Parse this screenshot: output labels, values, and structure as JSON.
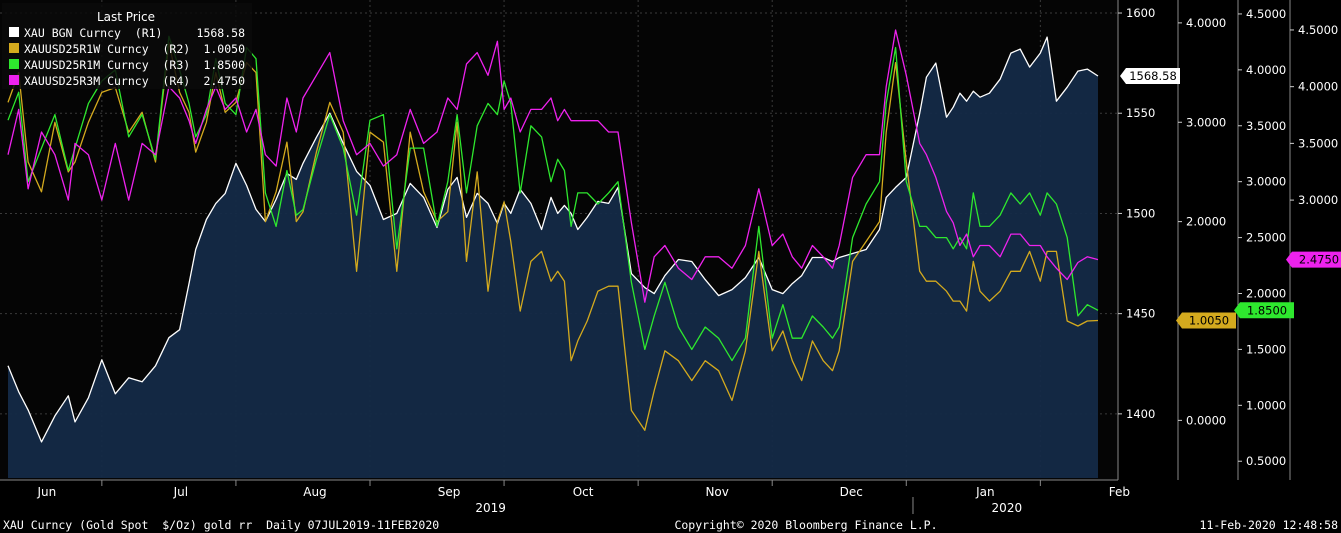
{
  "footer": {
    "left": "XAU Curncy (Gold Spot  $/Oz) gold rr  Daily 07JUL2019-11FEB2020",
    "center": "Copyright© 2020 Bloomberg Finance L.P.",
    "right": "11-Feb-2020 12:48:58"
  },
  "colors": {
    "background": "#000000",
    "plot_area": "#050505",
    "area_fill": "#142a47",
    "grid": "#3a3a3a",
    "axis_text": "#ffffff",
    "r1": "#ffffff",
    "r2": "#d4aa1e",
    "r3": "#2ee82e",
    "r4": "#ee22ee"
  },
  "chart_data": {
    "type": "line",
    "legend": {
      "title": "Last Price",
      "placement": "top-left",
      "entries": [
        {
          "key": "r1",
          "label": "XAU BGN Curncy  (R1)",
          "value": "1568.58"
        },
        {
          "key": "r2",
          "label": "XAUUSD25R1W Curncy  (R2)",
          "value": "1.0050"
        },
        {
          "key": "r3",
          "label": "XAUUSD25R1M Curncy  (R3)",
          "value": "1.8500"
        },
        {
          "key": "r4",
          "label": "XAUUSD25R3M Curncy  (R4)",
          "value": "2.4750"
        }
      ]
    },
    "x_labels": [
      "Jun",
      "Jul",
      "Aug",
      "Sep",
      "Oct",
      "Nov",
      "Dec",
      "Jan",
      "Feb"
    ],
    "x_label_pos": [
      0.0,
      1.0,
      2.0,
      3.0,
      4.0,
      5.0,
      6.0,
      7.0,
      8.0
    ],
    "x_year_labels": [
      {
        "text": "2019",
        "pos": 3.4
      },
      {
        "text": "2020",
        "pos": 7.25
      }
    ],
    "x_year_divider": 6.55,
    "xlim": [
      -0.2,
      7.93
    ],
    "grid": true,
    "axes": {
      "r1": {
        "ticks": [
          "1600",
          "1550",
          "1500",
          "1450",
          "1400"
        ],
        "tick_values": [
          1600,
          1550,
          1500,
          1450,
          1400
        ],
        "ylim": [
          1368,
          1604
        ]
      },
      "r2": {
        "ticks": [
          "4.0000",
          "3.0000",
          "2.0000",
          "1.0000",
          "0.0000"
        ],
        "tick_values": [
          4,
          3,
          2,
          1,
          0
        ],
        "ylim": [
          -0.58,
          4.18
        ]
      },
      "r3": {
        "ticks": [
          "4.5000",
          "4.0000",
          "3.5000",
          "3.0000",
          "2.5000",
          "2.0000",
          "1.5000",
          "1.0000",
          "0.5000"
        ],
        "tick_values": [
          4.5,
          4.0,
          3.5,
          3.0,
          2.5,
          2.0,
          1.5,
          1.0,
          0.5
        ],
        "ylim": [
          0.35,
          4.58
        ]
      },
      "r4": {
        "ticks": [
          "4.5000",
          "4.0000",
          "3.5000",
          "3.0000"
        ],
        "tick_values": [
          4.5,
          4.0,
          3.5,
          3.0
        ],
        "ylim": [
          0.55,
          4.72
        ]
      }
    },
    "last_value_labels": [
      {
        "key": "r1",
        "text": "1568.58",
        "value": 1568.58
      },
      {
        "key": "r2",
        "text": "1.0050",
        "value": 1.005
      },
      {
        "key": "r3",
        "text": "1.8500",
        "value": 1.85
      },
      {
        "key": "r4",
        "text": "2.4750",
        "value": 2.475
      }
    ],
    "series": [
      {
        "key": "r1",
        "axis": "r1",
        "name": "XAU BGN Curncy",
        "area": true,
        "x": [
          -0.2,
          -0.12,
          -0.05,
          0.05,
          0.15,
          0.25,
          0.3,
          0.4,
          0.5,
          0.6,
          0.7,
          0.8,
          0.9,
          1.0,
          1.08,
          1.15,
          1.2,
          1.28,
          1.35,
          1.42,
          1.5,
          1.58,
          1.65,
          1.72,
          1.8,
          1.88,
          1.95,
          2.0,
          2.1,
          2.2,
          2.3,
          2.4,
          2.5,
          2.6,
          2.7,
          2.8,
          2.9,
          3.0,
          3.08,
          3.15,
          3.22,
          3.3,
          3.38,
          3.45,
          3.5,
          3.55,
          3.62,
          3.7,
          3.78,
          3.85,
          3.9,
          3.95,
          4.0,
          4.05,
          4.12,
          4.2,
          4.28,
          4.35,
          4.45,
          4.55,
          4.62,
          4.7,
          4.8,
          4.9,
          5.0,
          5.1,
          5.2,
          5.3,
          5.4,
          5.5,
          5.58,
          5.65,
          5.72,
          5.8,
          5.88,
          5.95,
          6.0,
          6.1,
          6.2,
          6.3,
          6.35,
          6.42,
          6.5,
          6.6,
          6.65,
          6.72,
          6.8,
          6.85,
          6.9,
          6.95,
          7.0,
          7.05,
          7.12,
          7.2,
          7.28,
          7.35,
          7.42,
          7.5,
          7.55,
          7.62,
          7.7,
          7.78,
          7.85,
          7.93
        ],
        "values": [
          1424,
          1411,
          1402,
          1386,
          1399,
          1409,
          1396,
          1408,
          1427,
          1410,
          1418,
          1416,
          1424,
          1438,
          1442,
          1465,
          1482,
          1497,
          1505,
          1510,
          1525,
          1514,
          1502,
          1496,
          1507,
          1520,
          1517,
          1525,
          1538,
          1550,
          1535,
          1521,
          1514,
          1497,
          1500,
          1515,
          1508,
          1493,
          1512,
          1518,
          1498,
          1510,
          1505,
          1495,
          1505,
          1500,
          1512,
          1505,
          1492,
          1508,
          1500,
          1504,
          1500,
          1492,
          1498,
          1506,
          1505,
          1513,
          1470,
          1463,
          1460,
          1469,
          1477,
          1476,
          1467,
          1459,
          1462,
          1468,
          1478,
          1462,
          1460,
          1465,
          1469,
          1478,
          1478,
          1476,
          1478,
          1480,
          1482,
          1492,
          1508,
          1513,
          1518,
          1550,
          1568,
          1575,
          1548,
          1553,
          1560,
          1556,
          1561,
          1558,
          1560,
          1567,
          1580,
          1582,
          1573,
          1580,
          1588,
          1556,
          1563,
          1571,
          1572,
          1568.58
        ]
      },
      {
        "key": "r2",
        "axis": "r2",
        "name": "XAUUSD25R1W Curncy",
        "x": [
          -0.2,
          -0.12,
          -0.05,
          0.05,
          0.15,
          0.25,
          0.3,
          0.4,
          0.5,
          0.6,
          0.7,
          0.8,
          0.9,
          1.0,
          1.08,
          1.15,
          1.2,
          1.28,
          1.35,
          1.42,
          1.5,
          1.58,
          1.65,
          1.72,
          1.8,
          1.88,
          1.95,
          2.0,
          2.1,
          2.2,
          2.3,
          2.4,
          2.5,
          2.6,
          2.7,
          2.8,
          2.9,
          3.0,
          3.08,
          3.15,
          3.22,
          3.3,
          3.38,
          3.45,
          3.5,
          3.55,
          3.62,
          3.7,
          3.78,
          3.85,
          3.9,
          3.95,
          4.0,
          4.05,
          4.12,
          4.2,
          4.28,
          4.35,
          4.45,
          4.55,
          4.62,
          4.7,
          4.8,
          4.9,
          5.0,
          5.1,
          5.2,
          5.3,
          5.4,
          5.5,
          5.58,
          5.65,
          5.72,
          5.8,
          5.88,
          5.95,
          6.0,
          6.1,
          6.2,
          6.3,
          6.35,
          6.42,
          6.5,
          6.6,
          6.65,
          6.72,
          6.8,
          6.85,
          6.9,
          6.95,
          7.0,
          7.05,
          7.12,
          7.2,
          7.28,
          7.35,
          7.42,
          7.5,
          7.55,
          7.62,
          7.7,
          7.78,
          7.85,
          7.93
        ],
        "values": [
          3.2,
          3.5,
          2.6,
          2.3,
          3.0,
          2.5,
          2.6,
          3.0,
          3.3,
          3.35,
          2.9,
          3.1,
          2.6,
          3.8,
          3.3,
          3.1,
          2.7,
          3.0,
          3.5,
          3.1,
          3.2,
          3.6,
          3.5,
          2.0,
          2.3,
          2.8,
          2.0,
          2.1,
          2.7,
          3.2,
          2.9,
          1.5,
          2.9,
          2.8,
          1.5,
          2.9,
          2.3,
          2.0,
          2.1,
          3.0,
          1.6,
          2.5,
          1.3,
          2.0,
          2.2,
          1.8,
          1.1,
          1.6,
          1.7,
          1.4,
          1.5,
          1.4,
          0.6,
          0.8,
          1.0,
          1.3,
          1.35,
          1.35,
          0.1,
          -0.1,
          0.3,
          0.7,
          0.6,
          0.4,
          0.6,
          0.5,
          0.2,
          0.7,
          1.7,
          0.7,
          0.9,
          0.6,
          0.4,
          0.8,
          0.6,
          0.5,
          0.7,
          1.6,
          1.8,
          2.0,
          2.9,
          3.6,
          2.6,
          1.5,
          1.4,
          1.4,
          1.3,
          1.2,
          1.2,
          1.1,
          1.6,
          1.3,
          1.2,
          1.3,
          1.5,
          1.5,
          1.7,
          1.4,
          1.7,
          1.7,
          1.0,
          0.95,
          1.0,
          1.005
        ]
      },
      {
        "key": "r3",
        "axis": "r3",
        "name": "XAUUSD25R1M Curncy",
        "x": [
          -0.2,
          -0.12,
          -0.05,
          0.05,
          0.15,
          0.25,
          0.3,
          0.4,
          0.5,
          0.6,
          0.7,
          0.8,
          0.9,
          1.0,
          1.08,
          1.15,
          1.2,
          1.28,
          1.35,
          1.42,
          1.5,
          1.58,
          1.65,
          1.72,
          1.8,
          1.88,
          1.95,
          2.0,
          2.1,
          2.2,
          2.3,
          2.4,
          2.5,
          2.6,
          2.7,
          2.8,
          2.9,
          3.0,
          3.08,
          3.15,
          3.22,
          3.3,
          3.38,
          3.45,
          3.5,
          3.55,
          3.62,
          3.7,
          3.78,
          3.85,
          3.9,
          3.95,
          4.0,
          4.05,
          4.12,
          4.2,
          4.28,
          4.35,
          4.45,
          4.55,
          4.62,
          4.7,
          4.8,
          4.9,
          5.0,
          5.1,
          5.2,
          5.3,
          5.4,
          5.5,
          5.58,
          5.65,
          5.72,
          5.8,
          5.88,
          5.95,
          6.0,
          6.1,
          6.2,
          6.3,
          6.35,
          6.42,
          6.5,
          6.6,
          6.65,
          6.72,
          6.8,
          6.85,
          6.9,
          6.95,
          7.0,
          7.05,
          7.12,
          7.2,
          7.28,
          7.35,
          7.42,
          7.5,
          7.55,
          7.62,
          7.7,
          7.78,
          7.85,
          7.93
        ],
        "values": [
          3.55,
          3.8,
          3.0,
          3.3,
          3.6,
          3.1,
          3.3,
          3.7,
          3.9,
          4.0,
          3.4,
          3.6,
          3.2,
          4.3,
          4.0,
          3.7,
          3.4,
          3.6,
          4.1,
          3.7,
          3.6,
          4.2,
          4.1,
          2.9,
          2.6,
          3.1,
          2.7,
          2.75,
          3.2,
          3.6,
          3.3,
          2.7,
          3.55,
          3.6,
          2.4,
          3.3,
          3.3,
          2.6,
          3.0,
          3.6,
          2.9,
          3.5,
          3.7,
          3.6,
          3.9,
          3.7,
          2.9,
          3.5,
          3.4,
          3.0,
          3.2,
          3.1,
          2.6,
          2.9,
          2.9,
          2.8,
          2.9,
          3.0,
          2.1,
          1.5,
          1.8,
          2.1,
          1.7,
          1.5,
          1.7,
          1.6,
          1.4,
          1.6,
          2.6,
          1.6,
          1.9,
          1.6,
          1.6,
          1.8,
          1.7,
          1.6,
          1.7,
          2.5,
          2.8,
          3.0,
          3.7,
          4.2,
          3.0,
          2.6,
          2.6,
          2.5,
          2.5,
          2.4,
          2.5,
          2.4,
          2.9,
          2.6,
          2.6,
          2.7,
          2.9,
          2.8,
          2.9,
          2.7,
          2.9,
          2.8,
          2.5,
          1.8,
          1.9,
          1.85
        ]
      },
      {
        "key": "r4",
        "axis": "r4",
        "name": "XAUUSD25R3M Curncy",
        "x": [
          -0.2,
          -0.12,
          -0.05,
          0.05,
          0.15,
          0.25,
          0.3,
          0.4,
          0.5,
          0.6,
          0.7,
          0.8,
          0.9,
          1.0,
          1.08,
          1.15,
          1.2,
          1.28,
          1.35,
          1.42,
          1.5,
          1.58,
          1.65,
          1.72,
          1.8,
          1.88,
          1.95,
          2.0,
          2.1,
          2.2,
          2.3,
          2.4,
          2.5,
          2.6,
          2.7,
          2.8,
          2.9,
          3.0,
          3.08,
          3.15,
          3.22,
          3.3,
          3.38,
          3.45,
          3.5,
          3.55,
          3.62,
          3.7,
          3.78,
          3.85,
          3.9,
          3.95,
          4.0,
          4.05,
          4.12,
          4.2,
          4.28,
          4.35,
          4.45,
          4.55,
          4.62,
          4.7,
          4.8,
          4.9,
          5.0,
          5.1,
          5.2,
          5.3,
          5.4,
          5.5,
          5.58,
          5.65,
          5.72,
          5.8,
          5.88,
          5.95,
          6.0,
          6.1,
          6.2,
          6.3,
          6.35,
          6.42,
          6.5,
          6.6,
          6.65,
          6.72,
          6.8,
          6.85,
          6.9,
          6.95,
          7.0,
          7.05,
          7.12,
          7.2,
          7.28,
          7.35,
          7.42,
          7.5,
          7.55,
          7.62,
          7.7,
          7.78,
          7.85,
          7.93
        ],
        "values": [
          3.4,
          3.8,
          3.1,
          3.6,
          3.4,
          3.0,
          3.5,
          3.4,
          3.0,
          3.5,
          3.0,
          3.5,
          3.4,
          4.0,
          3.9,
          3.7,
          3.5,
          3.8,
          4.0,
          3.8,
          3.9,
          3.6,
          3.8,
          3.4,
          3.3,
          3.9,
          3.6,
          3.9,
          4.1,
          4.3,
          3.7,
          3.4,
          3.5,
          3.3,
          3.4,
          3.8,
          3.5,
          3.6,
          3.9,
          3.8,
          4.2,
          4.3,
          4.1,
          4.4,
          3.8,
          3.9,
          3.6,
          3.8,
          3.8,
          3.9,
          3.7,
          3.8,
          3.7,
          3.7,
          3.7,
          3.7,
          3.6,
          3.6,
          2.8,
          2.1,
          2.5,
          2.6,
          2.4,
          2.3,
          2.5,
          2.5,
          2.4,
          2.6,
          3.1,
          2.6,
          2.7,
          2.5,
          2.4,
          2.6,
          2.5,
          2.4,
          2.6,
          3.2,
          3.4,
          3.4,
          4.0,
          4.5,
          4.1,
          3.5,
          3.4,
          3.2,
          2.9,
          2.8,
          2.6,
          2.7,
          2.5,
          2.6,
          2.6,
          2.5,
          2.7,
          2.7,
          2.6,
          2.6,
          2.5,
          2.4,
          2.3,
          2.45,
          2.5,
          2.475
        ]
      }
    ]
  }
}
